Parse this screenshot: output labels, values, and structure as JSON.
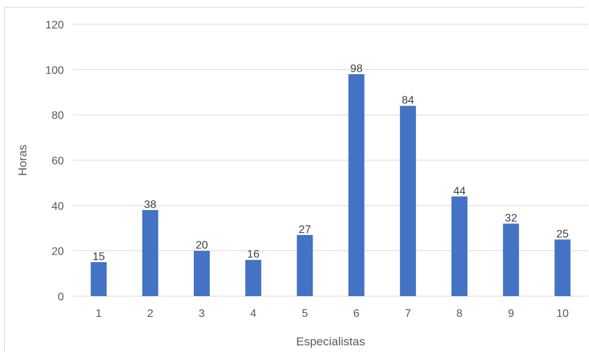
{
  "chart_data": {
    "type": "bar",
    "title": "",
    "xlabel": "Especialistas",
    "ylabel": "Horas",
    "categories": [
      "1",
      "2",
      "3",
      "4",
      "5",
      "6",
      "7",
      "8",
      "9",
      "10"
    ],
    "values": [
      15,
      38,
      20,
      16,
      27,
      98,
      84,
      44,
      32,
      25
    ],
    "ylim": [
      0,
      120
    ],
    "yticks": [
      "0",
      "20",
      "40",
      "60",
      "80",
      "100",
      "120"
    ],
    "grid": "horizontal",
    "legend": "none",
    "data_labels": true,
    "colors": {
      "bar": "#4472c4",
      "grid": "#d9d9d9",
      "text": "#595959"
    }
  }
}
